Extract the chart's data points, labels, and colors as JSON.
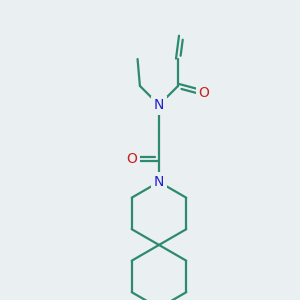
{
  "bg_color": "#eaeff2",
  "bond_color": "#2d8a6e",
  "N_color": "#2020cc",
  "O_color": "#cc2020",
  "bond_width": 1.6,
  "fig_size": [
    3.0,
    3.0
  ],
  "dpi": 100,
  "xlim": [
    0,
    10
  ],
  "ylim": [
    0,
    10
  ]
}
